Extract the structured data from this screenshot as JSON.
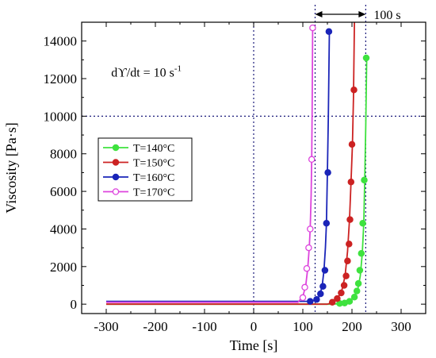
{
  "chart_data": {
    "type": "line",
    "xlabel": "Time [s]",
    "ylabel": "Viscosity  [Pa·s]",
    "xlim": [
      -350,
      350
    ],
    "ylim": [
      -500,
      15000
    ],
    "xticks": [
      -300,
      -200,
      -100,
      0,
      100,
      200,
      300
    ],
    "yticks": [
      0,
      2000,
      4000,
      6000,
      8000,
      10000,
      12000,
      14000
    ],
    "grid": false,
    "legend_position": "middle-left",
    "reference_lines": {
      "x": 0,
      "y": 10000
    },
    "annotation": {
      "rate_base": "dϒ/dt = 10 s",
      "rate_exp": "-1",
      "interval_label": "100 s",
      "interval_x": [
        125,
        228
      ]
    },
    "series": [
      {
        "name": "T=140°C",
        "color": "#3ee23e",
        "marker": "filled",
        "line": [
          [
            -300,
            0
          ],
          [
            160,
            0
          ],
          [
            180,
            40
          ],
          [
            195,
            150
          ],
          [
            205,
            400
          ],
          [
            212,
            800
          ],
          [
            217,
            1500
          ],
          [
            221,
            2700
          ],
          [
            224,
            4300
          ],
          [
            226,
            6600
          ],
          [
            228,
            9500
          ],
          [
            230,
            13100
          ]
        ],
        "markers": [
          [
            175,
            40
          ],
          [
            185,
            60
          ],
          [
            195,
            150
          ],
          [
            205,
            380
          ],
          [
            210,
            700
          ],
          [
            213,
            1100
          ],
          [
            216,
            1800
          ],
          [
            219,
            2700
          ],
          [
            222,
            4300
          ],
          [
            225,
            6600
          ],
          [
            229,
            13100
          ]
        ]
      },
      {
        "name": "T=150°C",
        "color": "#cc2222",
        "marker": "filled",
        "line": [
          [
            -300,
            0
          ],
          [
            150,
            0
          ],
          [
            162,
            100
          ],
          [
            172,
            350
          ],
          [
            180,
            800
          ],
          [
            186,
            1500
          ],
          [
            191,
            2800
          ],
          [
            195,
            4500
          ],
          [
            198,
            6500
          ],
          [
            201,
            8500
          ],
          [
            203,
            11000
          ],
          [
            205,
            15000
          ]
        ],
        "markers": [
          [
            160,
            100
          ],
          [
            170,
            300
          ],
          [
            178,
            600
          ],
          [
            184,
            1000
          ],
          [
            188,
            1500
          ],
          [
            191,
            2300
          ],
          [
            194,
            3200
          ],
          [
            196,
            4500
          ],
          [
            198,
            6500
          ],
          [
            200,
            8500
          ],
          [
            204,
            11400
          ]
        ]
      },
      {
        "name": "T=160°C",
        "color": "#1a24b8",
        "marker": "filled",
        "line": [
          [
            -300,
            150
          ],
          [
            110,
            150
          ],
          [
            125,
            200
          ],
          [
            133,
            400
          ],
          [
            139,
            900
          ],
          [
            143,
            1800
          ],
          [
            146,
            3000
          ],
          [
            148,
            4300
          ],
          [
            150,
            7000
          ],
          [
            152,
            10000
          ],
          [
            154,
            14500
          ]
        ],
        "markers": [
          [
            115,
            150
          ],
          [
            128,
            250
          ],
          [
            136,
            550
          ],
          [
            141,
            950
          ],
          [
            145,
            1800
          ],
          [
            148,
            4300
          ],
          [
            151,
            7000
          ],
          [
            153,
            14500
          ]
        ]
      },
      {
        "name": "T=170°C",
        "color": "#dd44dd",
        "marker": "open",
        "line": [
          [
            -300,
            100
          ],
          [
            90,
            100
          ],
          [
            100,
            400
          ],
          [
            106,
            1000
          ],
          [
            110,
            1900
          ],
          [
            113,
            3000
          ],
          [
            115,
            4000
          ],
          [
            117,
            5800
          ],
          [
            118,
            7700
          ],
          [
            119,
            10500
          ],
          [
            120,
            14700
          ]
        ],
        "markers": [
          [
            100,
            350
          ],
          [
            104,
            900
          ],
          [
            108,
            1900
          ],
          [
            112,
            3000
          ],
          [
            115,
            4000
          ],
          [
            118,
            7700
          ],
          [
            120,
            14700
          ]
        ]
      }
    ]
  }
}
